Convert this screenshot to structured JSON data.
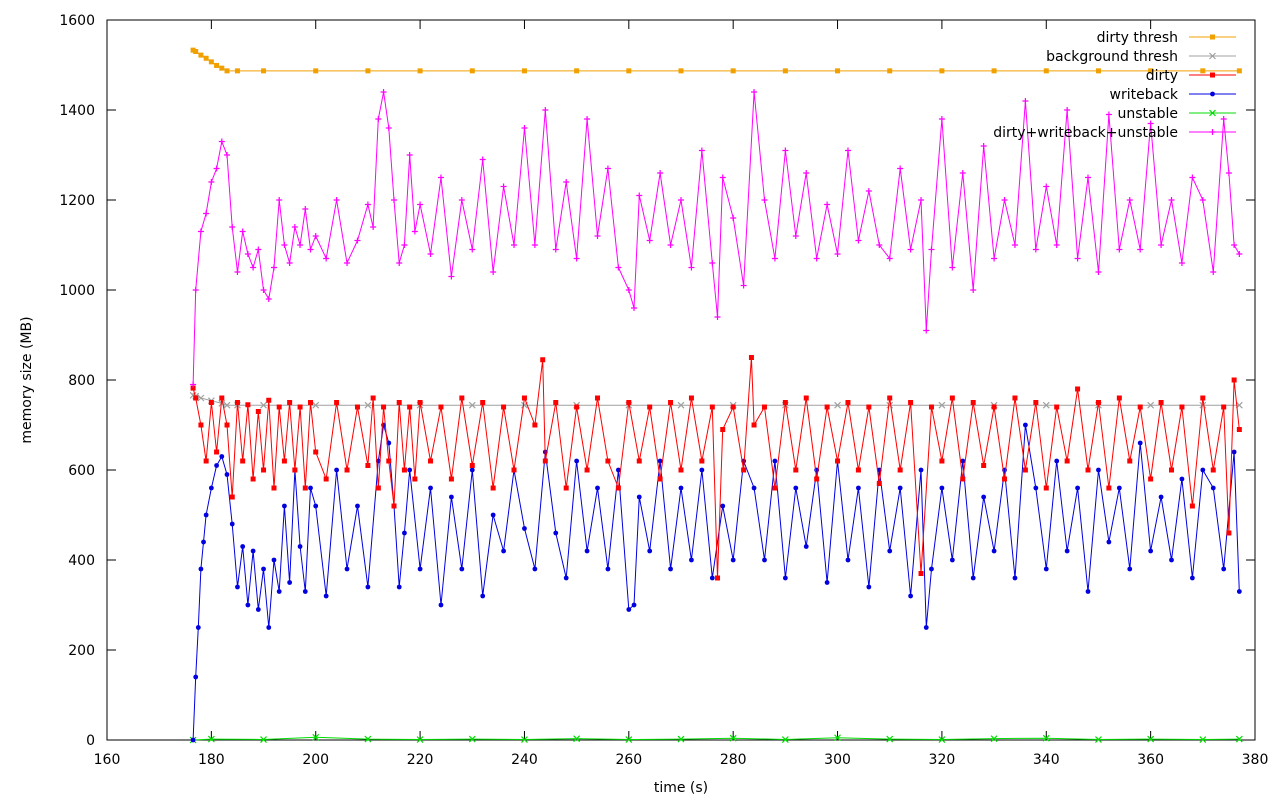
{
  "chart_data": {
    "type": "line",
    "title": "",
    "xlabel": "time (s)",
    "ylabel": "memory size (MB)",
    "xlim": [
      160,
      380
    ],
    "ylim": [
      0,
      1600
    ],
    "x_ticks": [
      160,
      180,
      200,
      220,
      240,
      260,
      280,
      300,
      320,
      340,
      360,
      380
    ],
    "y_ticks": [
      0,
      200,
      400,
      600,
      800,
      1000,
      1200,
      1400,
      1600
    ],
    "grid": false,
    "legend_position": "top-right",
    "series": [
      {
        "name": "dirty thresh",
        "color": "#f0a000",
        "marker": "square",
        "x": [
          176.5,
          177,
          178,
          179,
          180,
          181,
          182,
          183,
          185,
          190,
          200,
          210,
          220,
          230,
          240,
          250,
          260,
          270,
          280,
          290,
          300,
          310,
          320,
          330,
          340,
          350,
          360,
          370,
          377
        ],
        "y": [
          1533,
          1530,
          1522,
          1515,
          1507,
          1499,
          1493,
          1487,
          1487,
          1487,
          1487,
          1487,
          1487,
          1487,
          1487,
          1487,
          1487,
          1487,
          1487,
          1487,
          1487,
          1487,
          1487,
          1487,
          1487,
          1487,
          1487,
          1487,
          1487
        ]
      },
      {
        "name": "background thresh",
        "color": "#a0a0a0",
        "marker": "cross",
        "x": [
          176.5,
          177,
          178,
          180,
          182,
          183,
          185,
          190,
          200,
          210,
          220,
          230,
          240,
          250,
          260,
          270,
          280,
          290,
          300,
          310,
          320,
          330,
          340,
          350,
          360,
          370,
          377
        ],
        "y": [
          766,
          764,
          760,
          754,
          748,
          744,
          744,
          744,
          744,
          744,
          744,
          744,
          744,
          744,
          744,
          744,
          744,
          744,
          744,
          744,
          744,
          744,
          744,
          744,
          744,
          744,
          744
        ]
      },
      {
        "name": "dirty",
        "color": "#ff0000",
        "marker": "square",
        "x": [
          176.5,
          177,
          178,
          179,
          180,
          181,
          182,
          183,
          184,
          185,
          186,
          187,
          188,
          189,
          190,
          191,
          192,
          193,
          194,
          195,
          196,
          197,
          198,
          199,
          200,
          202,
          204,
          206,
          208,
          210,
          211,
          212,
          213,
          214,
          215,
          216,
          217,
          218,
          219,
          220,
          222,
          224,
          226,
          228,
          230,
          232,
          234,
          236,
          238,
          240,
          242,
          243.5,
          244,
          246,
          248,
          250,
          252,
          254,
          256,
          258,
          260,
          262,
          264,
          266,
          268,
          270,
          272,
          274,
          276,
          277,
          278,
          280,
          282,
          283.5,
          284,
          286,
          288,
          290,
          292,
          294,
          296,
          298,
          300,
          302,
          304,
          306,
          308,
          310,
          312,
          314,
          316,
          318,
          320,
          322,
          324,
          326,
          328,
          330,
          332,
          334,
          336,
          338,
          340,
          342,
          344,
          346,
          348,
          350,
          352,
          354,
          356,
          358,
          360,
          362,
          364,
          366,
          368,
          370,
          372,
          374,
          375,
          376,
          377
        ],
        "y": [
          782,
          760,
          700,
          620,
          750,
          640,
          760,
          700,
          540,
          750,
          620,
          745,
          580,
          730,
          600,
          755,
          560,
          740,
          620,
          750,
          600,
          740,
          560,
          750,
          640,
          580,
          750,
          600,
          740,
          610,
          760,
          560,
          740,
          620,
          520,
          750,
          600,
          740,
          580,
          750,
          620,
          740,
          580,
          760,
          610,
          750,
          560,
          740,
          600,
          760,
          700,
          845,
          620,
          750,
          560,
          740,
          600,
          760,
          620,
          560,
          750,
          620,
          740,
          580,
          750,
          600,
          760,
          620,
          740,
          360,
          690,
          740,
          600,
          850,
          700,
          740,
          560,
          750,
          600,
          760,
          580,
          740,
          620,
          750,
          600,
          740,
          570,
          760,
          600,
          750,
          370,
          740,
          620,
          760,
          580,
          750,
          610,
          740,
          580,
          760,
          600,
          750,
          560,
          740,
          620,
          780,
          600,
          750,
          560,
          760,
          620,
          740,
          580,
          750,
          600,
          740,
          520,
          760,
          600,
          740,
          460,
          800,
          690
        ]
      },
      {
        "name": "writeback",
        "color": "#0000e0",
        "marker": "circle",
        "x": [
          176.5,
          177,
          177.5,
          178,
          178.5,
          179,
          180,
          181,
          182,
          183,
          184,
          185,
          186,
          187,
          188,
          189,
          190,
          191,
          192,
          193,
          194,
          195,
          196,
          197,
          198,
          199,
          200,
          202,
          204,
          206,
          208,
          210,
          212,
          213,
          214,
          215,
          216,
          217,
          218,
          220,
          222,
          224,
          226,
          228,
          230,
          232,
          234,
          236,
          238,
          240,
          242,
          244,
          246,
          248,
          250,
          252,
          254,
          256,
          258,
          260,
          261,
          262,
          264,
          266,
          268,
          270,
          272,
          274,
          276,
          278,
          280,
          282,
          284,
          286,
          288,
          290,
          292,
          294,
          296,
          298,
          300,
          302,
          304,
          306,
          308,
          310,
          312,
          314,
          316,
          317,
          318,
          320,
          322,
          324,
          326,
          328,
          330,
          332,
          334,
          336,
          338,
          340,
          342,
          344,
          346,
          348,
          350,
          352,
          354,
          356,
          358,
          360,
          362,
          364,
          366,
          368,
          370,
          372,
          374,
          376,
          377
        ],
        "y": [
          0,
          140,
          250,
          380,
          440,
          500,
          560,
          610,
          630,
          590,
          480,
          340,
          430,
          300,
          420,
          290,
          380,
          250,
          400,
          330,
          520,
          350,
          600,
          430,
          330,
          560,
          520,
          320,
          600,
          380,
          520,
          340,
          620,
          700,
          660,
          520,
          340,
          460,
          600,
          380,
          560,
          300,
          540,
          380,
          600,
          320,
          500,
          420,
          600,
          470,
          380,
          640,
          460,
          360,
          620,
          420,
          560,
          380,
          600,
          290,
          300,
          540,
          420,
          620,
          380,
          560,
          400,
          600,
          360,
          520,
          400,
          620,
          560,
          400,
          620,
          360,
          560,
          430,
          600,
          350,
          620,
          400,
          560,
          340,
          600,
          420,
          560,
          320,
          600,
          250,
          380,
          560,
          400,
          620,
          360,
          540,
          420,
          600,
          360,
          700,
          560,
          380,
          620,
          420,
          560,
          330,
          600,
          440,
          560,
          380,
          660,
          420,
          540,
          400,
          580,
          360,
          600,
          560,
          380,
          640,
          330
        ]
      },
      {
        "name": "unstable",
        "color": "#00dd00",
        "marker": "cross",
        "x": [
          176.5,
          180,
          190,
          200,
          210,
          220,
          230,
          240,
          250,
          260,
          270,
          280,
          290,
          300,
          310,
          320,
          330,
          340,
          350,
          360,
          370,
          377
        ],
        "y": [
          0,
          2,
          1,
          6,
          2,
          1,
          2,
          1,
          3,
          1,
          2,
          4,
          1,
          5,
          2,
          1,
          3,
          4,
          1,
          2,
          1,
          2
        ]
      },
      {
        "name": "dirty+writeback+unstable",
        "color": "#ff00ff",
        "marker": "plus",
        "x": [
          176.5,
          177,
          178,
          179,
          180,
          181,
          182,
          183,
          184,
          185,
          186,
          187,
          188,
          189,
          190,
          191,
          192,
          193,
          194,
          195,
          196,
          197,
          198,
          199,
          200,
          202,
          204,
          206,
          208,
          210,
          211,
          212,
          213,
          214,
          215,
          216,
          217,
          218,
          219,
          220,
          222,
          224,
          226,
          228,
          230,
          232,
          234,
          236,
          238,
          240,
          242,
          244,
          246,
          248,
          250,
          252,
          254,
          256,
          258,
          260,
          261,
          262,
          264,
          266,
          268,
          270,
          272,
          274,
          276,
          277,
          278,
          280,
          282,
          284,
          286,
          288,
          290,
          292,
          294,
          296,
          298,
          300,
          302,
          304,
          306,
          308,
          310,
          312,
          314,
          316,
          317,
          318,
          320,
          322,
          324,
          326,
          328,
          330,
          332,
          334,
          336,
          338,
          340,
          342,
          344,
          346,
          348,
          350,
          352,
          354,
          356,
          358,
          360,
          362,
          364,
          366,
          368,
          370,
          372,
          374,
          375,
          376,
          377
        ],
        "y": [
          790,
          1000,
          1130,
          1170,
          1240,
          1270,
          1330,
          1300,
          1140,
          1040,
          1130,
          1080,
          1050,
          1090,
          1000,
          980,
          1050,
          1200,
          1100,
          1060,
          1140,
          1100,
          1180,
          1090,
          1120,
          1070,
          1200,
          1060,
          1110,
          1190,
          1140,
          1380,
          1440,
          1360,
          1200,
          1060,
          1100,
          1300,
          1130,
          1190,
          1080,
          1250,
          1030,
          1200,
          1090,
          1290,
          1040,
          1230,
          1100,
          1360,
          1100,
          1400,
          1090,
          1240,
          1070,
          1380,
          1120,
          1270,
          1050,
          1000,
          960,
          1210,
          1110,
          1260,
          1100,
          1200,
          1050,
          1310,
          1060,
          940,
          1250,
          1160,
          1010,
          1440,
          1200,
          1070,
          1310,
          1120,
          1260,
          1070,
          1190,
          1080,
          1310,
          1110,
          1220,
          1100,
          1070,
          1270,
          1090,
          1200,
          910,
          1090,
          1380,
          1050,
          1260,
          1000,
          1320,
          1070,
          1200,
          1100,
          1420,
          1090,
          1230,
          1100,
          1400,
          1070,
          1250,
          1040,
          1390,
          1090,
          1200,
          1090,
          1370,
          1100,
          1200,
          1060,
          1250,
          1200,
          1040,
          1380,
          1260,
          1100,
          1080
        ]
      }
    ]
  }
}
